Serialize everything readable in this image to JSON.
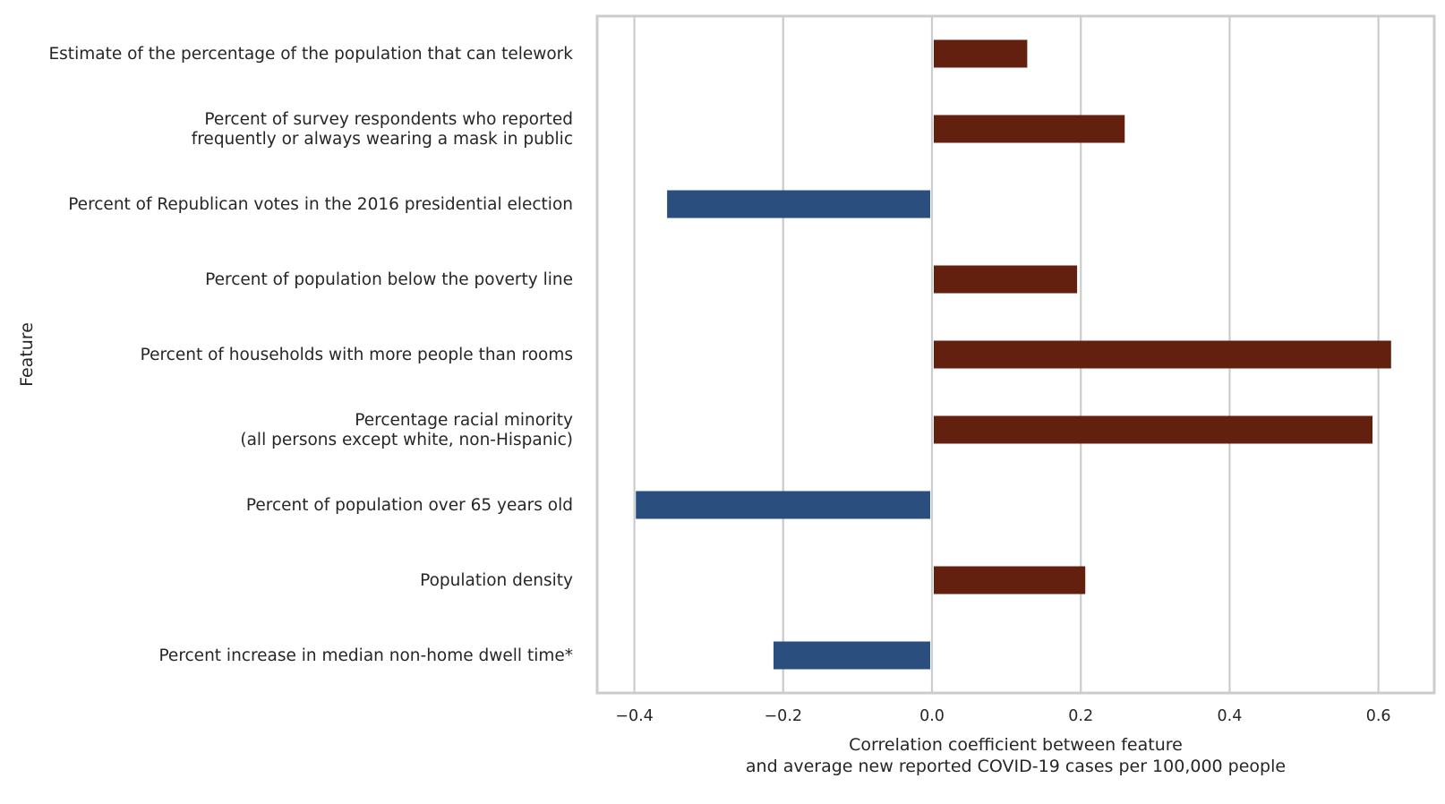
{
  "chart_data": {
    "type": "bar",
    "orientation": "horizontal",
    "ylabel": "Feature",
    "xlabel": [
      "Correlation coefficient between feature",
      "and average new reported COVID-19 cases per 100,000 people"
    ],
    "xlim": [
      -0.45,
      0.675
    ],
    "xticks": [
      -0.4,
      -0.2,
      0.0,
      0.2,
      0.4,
      0.6
    ],
    "xtick_labels": [
      "−0.4",
      "−0.2",
      "0.0",
      "0.2",
      "0.4",
      "0.6"
    ],
    "grid": true,
    "categories": [
      [
        "Estimate of the percentage of the population that can telework"
      ],
      [
        "Percent of survey respondents who reported",
        "frequently or always wearing a mask in public"
      ],
      [
        "Percent of Republican votes in the 2016 presidential election"
      ],
      [
        "Percent of population below the poverty line"
      ],
      [
        "Percent of households with more people than rooms"
      ],
      [
        "Percentage racial minority",
        "(all persons except white, non-Hispanic)"
      ],
      [
        "Percent of population over 65 years old"
      ],
      [
        "Population density"
      ],
      [
        "Percent increase in median non-home dwell time*"
      ]
    ],
    "values": [
      0.128,
      0.259,
      -0.356,
      0.195,
      0.617,
      0.592,
      -0.398,
      0.206,
      -0.213
    ],
    "colors": {
      "positive": "#63200f",
      "negative": "#2a4f7e"
    }
  }
}
